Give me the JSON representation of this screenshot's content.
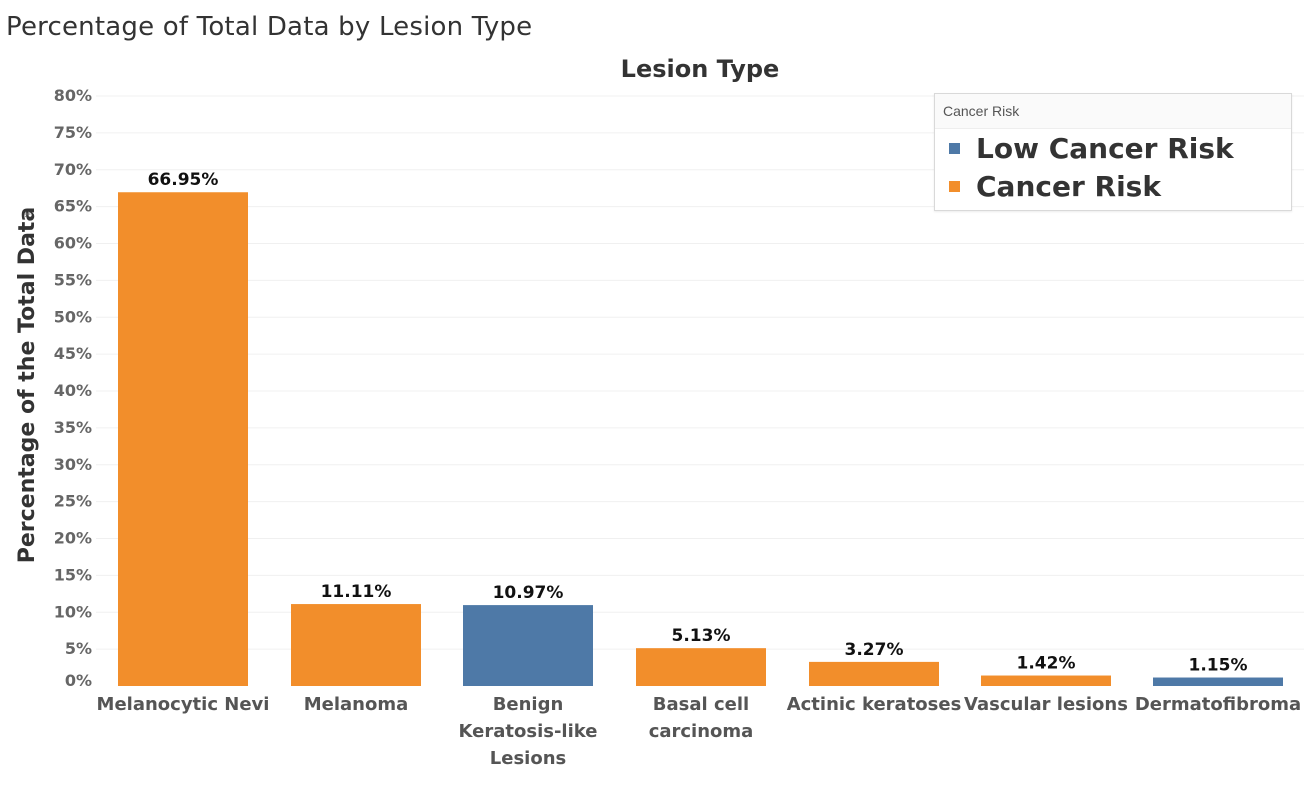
{
  "page": {
    "title": "Percentage of Total Data by Lesion Type"
  },
  "legend": {
    "title": "Cancer Risk",
    "items": [
      {
        "label": "Low Cancer Risk",
        "color": "#4e79a7"
      },
      {
        "label": "Cancer Risk",
        "color": "#f28e2b"
      }
    ]
  },
  "chart_data": {
    "type": "bar",
    "title": "Lesion Type",
    "xlabel": "",
    "ylabel": "Percentage of the Total Data",
    "ylabel_marker": "⁎",
    "ylim": [
      0,
      80
    ],
    "y_ticks": [
      0,
      5,
      10,
      15,
      20,
      25,
      30,
      35,
      40,
      45,
      50,
      55,
      60,
      65,
      70,
      75,
      80
    ],
    "y_tick_labels": [
      "0%",
      "5%",
      "10%",
      "15%",
      "20%",
      "25%",
      "30%",
      "35%",
      "40%",
      "45%",
      "50%",
      "55%",
      "60%",
      "65%",
      "70%",
      "75%",
      "80%"
    ],
    "grid": true,
    "legend_position": "top-right",
    "categories": [
      [
        "Melanocytic Nevi"
      ],
      [
        "Melanoma"
      ],
      [
        "Benign",
        "Keratosis-like",
        "Lesions"
      ],
      [
        "Basal cell",
        "carcinoma"
      ],
      [
        "Actinic keratoses"
      ],
      [
        "Vascular lesions"
      ],
      [
        "Dermatofibroma"
      ]
    ],
    "values": [
      66.95,
      11.11,
      10.97,
      5.13,
      3.27,
      1.42,
      1.15
    ],
    "data_labels": [
      "66.95%",
      "11.11%",
      "10.97%",
      "5.13%",
      "3.27%",
      "1.42%",
      "1.15%"
    ],
    "series_group": [
      "Cancer Risk",
      "Cancer Risk",
      "Low Cancer Risk",
      "Cancer Risk",
      "Cancer Risk",
      "Cancer Risk",
      "Low Cancer Risk"
    ],
    "colors": {
      "Low Cancer Risk": "#4e79a7",
      "Cancer Risk": "#f28e2b"
    }
  }
}
